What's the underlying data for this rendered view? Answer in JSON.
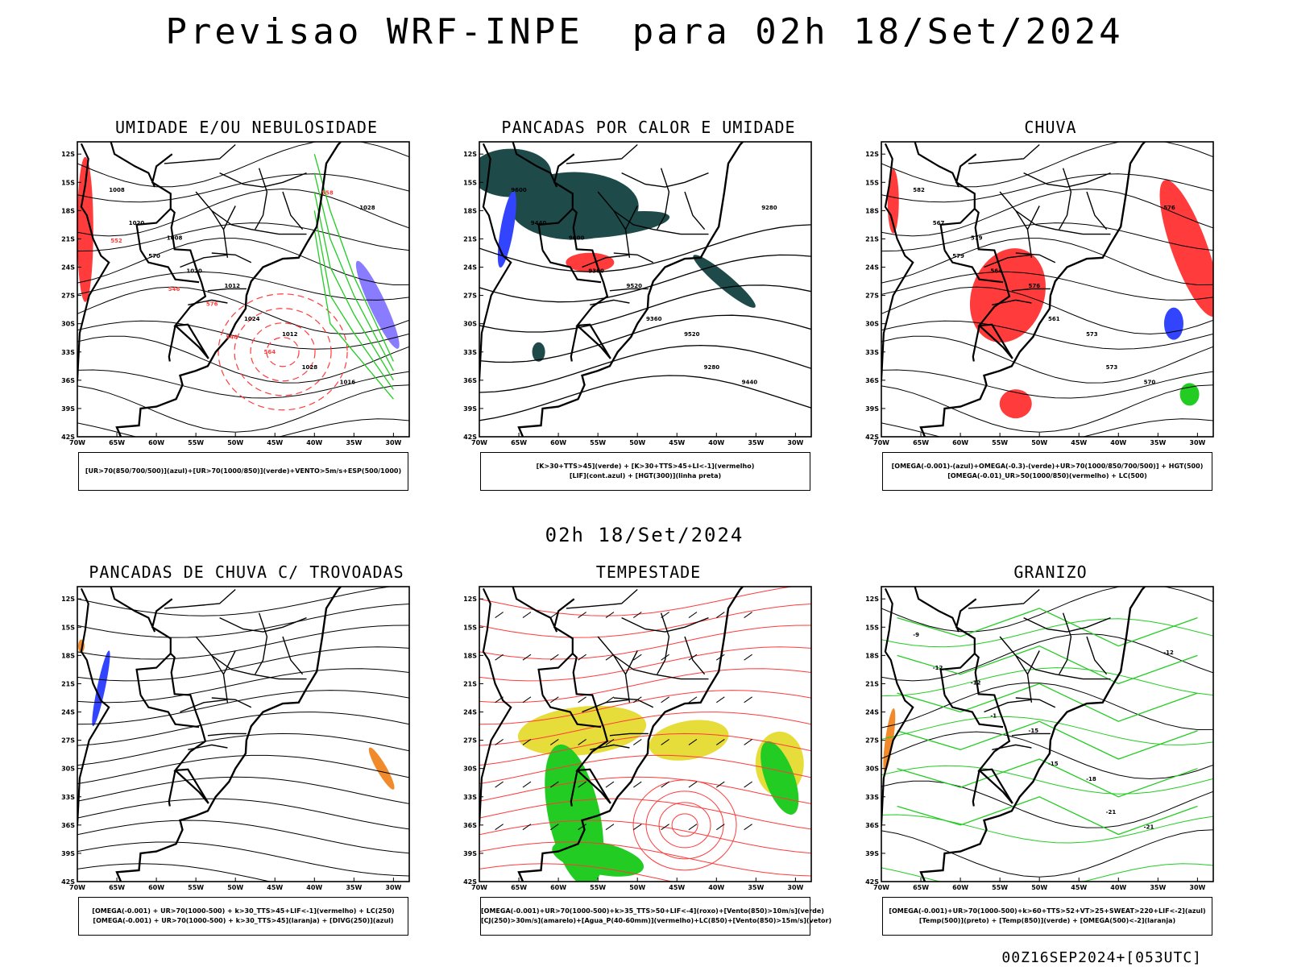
{
  "header": {
    "title": "Previsao WRF-INPE  para 02h 18/Set/2024",
    "subtitle": "02h 18/Set/2024",
    "footer": "00Z16SEP2024+[053UTC]"
  },
  "axes": {
    "lat_labels": [
      "12S",
      "15S",
      "18S",
      "21S",
      "24S",
      "27S",
      "30S",
      "33S",
      "36S",
      "39S",
      "42S"
    ],
    "lon_labels": [
      "70W",
      "65W",
      "60W",
      "55W",
      "50W",
      "45W",
      "40W",
      "35W",
      "30W"
    ]
  },
  "colors": {
    "red": "#ff3b3b",
    "green": "#22cc22",
    "blue": "#3344ff",
    "violet": "#8a7cff",
    "darkteal": "#1f4a4a",
    "yellow": "#e6dc3a",
    "orange": "#f08a2a",
    "black": "#000000"
  },
  "panels": [
    {
      "title": "UMIDADE E/OU NEBULOSIDADE",
      "legend": [
        "[UR>70(850/700/500)](azul)+[UR>70(1000/850)](verde)+VENTO>5m/s+ESP(500/1000)"
      ],
      "contour_labels": [
        "1008",
        "1008",
        "1012",
        "1012",
        "1016",
        "1020",
        "1020",
        "1024",
        "1028",
        "1028",
        "570",
        "576",
        "564",
        "558",
        "552",
        "546",
        "540"
      ]
    },
    {
      "title": "PANCADAS POR CALOR E UMIDADE",
      "legend": [
        "[K>30+TTS>45](verde) + [K>30+TTS>45+LI<-1](vermelho)",
        "[LIF](cont.azul) + [HGT(300)](linha preta)"
      ],
      "contour_labels": [
        "9600",
        "9600",
        "9520",
        "9520",
        "9440",
        "9440",
        "9360",
        "9360",
        "9280",
        "9280"
      ]
    },
    {
      "title": "CHUVA",
      "legend": [
        "[OMEGA(-0.001)-(azul)+OMEGA(-0.3)-(verde)+UR>70(1000/850/700/500)] + HGT(500)",
        "[OMEGA(-0.01)_UR>50(1000/850)(vermelho) + LC(500)"
      ],
      "contour_labels": [
        "582",
        "579",
        "576",
        "573",
        "570",
        "567",
        "564",
        "561",
        "573",
        "576",
        "579"
      ]
    },
    {
      "title": "PANCADAS DE CHUVA C/ TROVOADAS",
      "legend": [
        "[OMEGA(-0.001) + UR>70(1000-500) + k>30_TTS>45+LIF<-1](vermelho) + LC(250)",
        "[OMEGA(-0.001) + UR>70(1000-500) + k>30_TTS>45](laranja) + [DIVG(250)](azul)"
      ],
      "contour_labels": []
    },
    {
      "title": "TEMPESTADE",
      "legend": [
        "[OMEGA(-0.001)+UR>70(1000-500)+k>35_TTS>50+LIF<-4](roxo)+[Vento(850)>10m/s](verde)",
        "[CJ(250)>30m/s](amarelo)+[Agua_P(40-60mm)](vermelho)+LC(850)+[Vento(850)>15m/s](vetor)"
      ],
      "contour_labels": []
    },
    {
      "title": "GRANIZO",
      "legend": [
        "[OMEGA(-0.001)+UR>70(1000-500)+k>60+TTS>52+VT>25+SWEAT>220+LIF<-2](azul)",
        "[Temp(500)](preto) + [Temp(850)](verde) + [OMEGA(500)<-2](laranja)"
      ],
      "contour_labels": [
        "-9",
        "-12",
        "-15",
        "-18",
        "-21",
        "-12",
        "-1",
        "-15",
        "-21",
        "-12"
      ]
    }
  ]
}
